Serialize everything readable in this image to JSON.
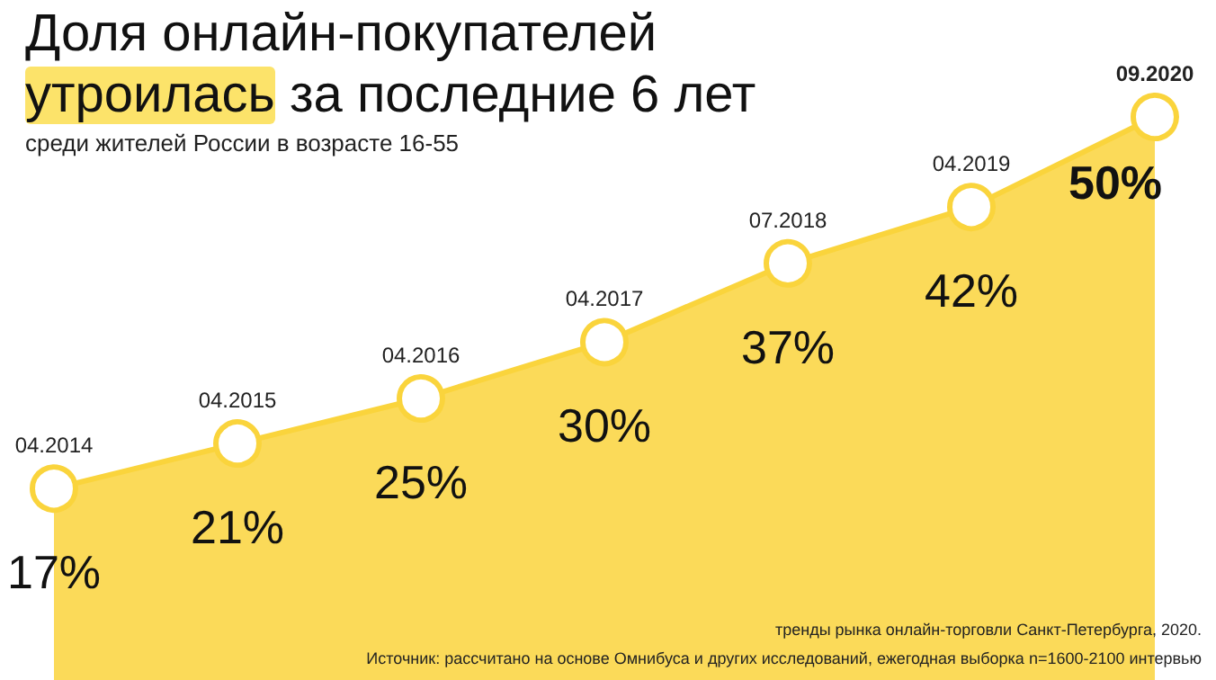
{
  "chart_data": {
    "type": "area",
    "title": "Доля онлайн-покупателей утроилась за последние 6 лет",
    "subtitle": "среди жителей России в возрасте 16-55",
    "annotations": [
      "тренды рынка онлайн-торговли Санкт-Петербурга, 2020.",
      "Источник: рассчитано на основе Омнибуса и других исследований, ежегодная выборка n=1600-2100 интервью"
    ],
    "categories": [
      "04.2014",
      "04.2015",
      "04.2016",
      "04.2017",
      "07.2018",
      "04.2019",
      "09.2020"
    ],
    "series": [
      {
        "color": "#fad43c",
        "values": [
          17,
          21,
          25,
          30,
          37,
          42,
          50
        ],
        "value_labels": [
          "17%",
          "21%",
          "25%",
          "30%",
          "37%",
          "42%",
          "50%"
        ]
      }
    ],
    "marker": "circle"
  }
}
